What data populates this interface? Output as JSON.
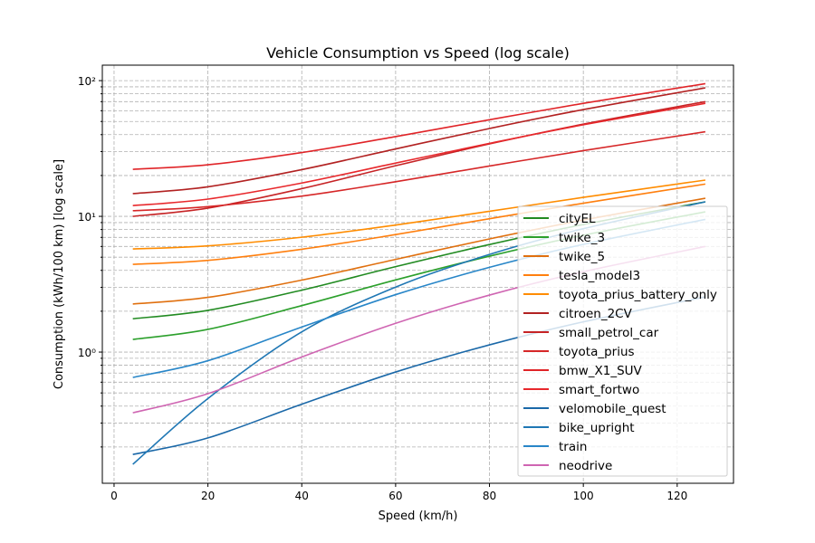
{
  "chart_data": {
    "type": "line",
    "title": "Vehicle Consumption vs Speed (log scale)",
    "xlabel": "Speed (km/h)",
    "ylabel": "Consumption (kWh/100 km) [log scale]",
    "xlim": [
      -2.5,
      132
    ],
    "ylim": [
      0.108,
      130
    ],
    "yscale": "log",
    "grid": true,
    "legend_placement": "lower-right",
    "x_ticks": [
      0,
      20,
      40,
      60,
      80,
      100,
      120
    ],
    "x_tick_labels": [
      "0",
      "20",
      "40",
      "60",
      "80",
      "100",
      "120"
    ],
    "y_ticks": [
      1,
      10,
      100
    ],
    "y_tick_labels": [
      "10⁰",
      "10¹",
      "10²"
    ],
    "x": [
      4,
      20,
      40,
      60,
      80,
      100,
      126
    ],
    "series": [
      {
        "name": "cityEL",
        "color": "#228b22",
        "values": [
          1.76,
          2.03,
          2.86,
          4.26,
          6.2,
          8.71,
          12.8
        ]
      },
      {
        "name": "twike_3",
        "color": "#2ca02c",
        "values": [
          1.24,
          1.47,
          2.2,
          3.4,
          5.09,
          7.26,
          10.8
        ]
      },
      {
        "name": "twike_5",
        "color": "#e0700f",
        "values": [
          2.26,
          2.53,
          3.39,
          4.82,
          6.82,
          9.4,
          13.6
        ]
      },
      {
        "name": "tesla_model3",
        "color": "#ff7f0e",
        "values": [
          4.43,
          4.74,
          5.72,
          7.34,
          9.61,
          12.5,
          17.3
        ]
      },
      {
        "name": "toyota_prius_battery_only",
        "color": "#ff8c00",
        "values": [
          5.75,
          6.06,
          7.02,
          8.63,
          10.9,
          13.8,
          18.5
        ]
      },
      {
        "name": "citroen_2CV",
        "color": "#b22222",
        "values": [
          14.7,
          16.5,
          22.1,
          31.4,
          44.4,
          61.2,
          88.5
        ]
      },
      {
        "name": "small_petrol_car",
        "color": "#c62426",
        "values": [
          10.0,
          11.5,
          16.0,
          23.6,
          34.2,
          47.8,
          70.0
        ]
      },
      {
        "name": "toyota_prius",
        "color": "#d62728",
        "values": [
          11.0,
          11.8,
          14.1,
          18.0,
          23.5,
          30.5,
          42.0
        ]
      },
      {
        "name": "bmw_X1_SUV",
        "color": "#e02428",
        "values": [
          22.2,
          24.0,
          29.5,
          38.7,
          51.5,
          68.0,
          95.0
        ]
      },
      {
        "name": "smart_fortwo",
        "color": "#e8282c",
        "values": [
          12.0,
          13.4,
          17.6,
          24.7,
          34.5,
          47.3,
          68.0
        ]
      },
      {
        "name": "velomobile_quest",
        "color": "#1a68a8",
        "values": [
          0.176,
          0.233,
          0.413,
          0.713,
          1.13,
          1.67,
          2.55
        ]
      },
      {
        "name": "bike_upright",
        "color": "#1f77b4",
        "values": [
          0.149,
          0.455,
          1.41,
          3.01,
          5.24,
          8.11,
          12.8
        ]
      },
      {
        "name": "train",
        "color": "#2886c8",
        "values": [
          0.65,
          0.864,
          1.53,
          2.65,
          4.21,
          6.22,
          9.5
        ]
      },
      {
        "name": "neodrive",
        "color": "#cf65b2",
        "values": [
          0.357,
          0.494,
          0.92,
          1.63,
          2.63,
          3.91,
          6.0
        ]
      }
    ]
  }
}
